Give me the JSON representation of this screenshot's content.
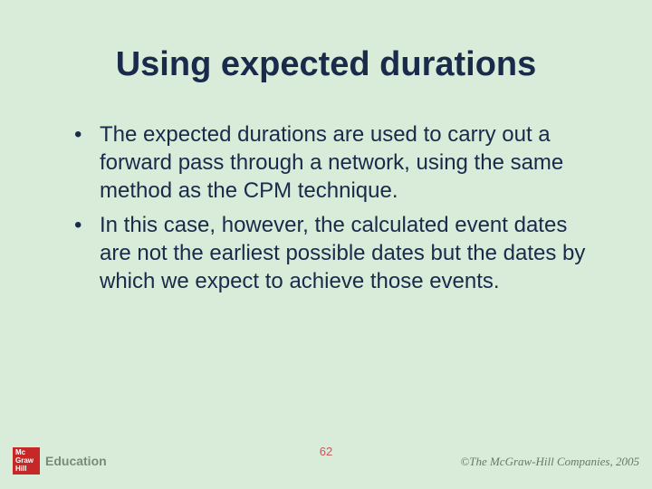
{
  "slide": {
    "background_color": "#d9ecd9",
    "title": "Using expected durations",
    "title_color": "#1a2a4a",
    "title_fontsize": 38,
    "bullets": [
      "The expected durations are used to carry out a forward pass through a network, using the same method as the CPM technique.",
      "In this case, however, the calculated event dates are not the earliest possible dates but the dates by which we expect to achieve those events."
    ],
    "bullet_color": "#1a2a4a",
    "bullet_fontsize": 24
  },
  "footer": {
    "logo_box_color": "#c62828",
    "logo_box_line1": "Mc",
    "logo_box_line2": "Graw",
    "logo_box_line3": "Hill",
    "logo_text": "Education",
    "logo_text_color": "#7a8a7a",
    "page_number": "62",
    "page_number_color": "#c05a5a",
    "copyright": "©The McGraw-Hill Companies, 2005",
    "copyright_color": "#6a786a"
  }
}
